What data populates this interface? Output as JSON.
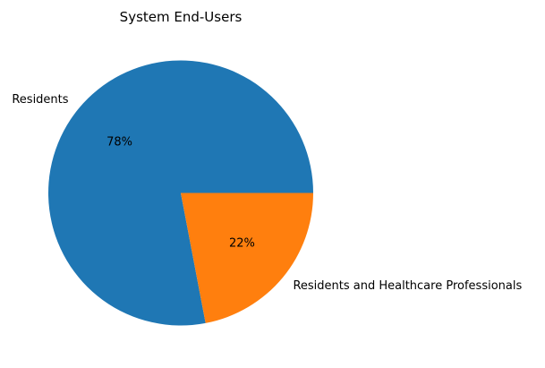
{
  "chart_data": {
    "type": "pie",
    "title": "System End-Users",
    "categories": [
      "Residents",
      "Residents and Healthcare Professionals"
    ],
    "values": [
      78,
      22
    ],
    "value_labels": [
      "78%",
      "22%"
    ],
    "colors": [
      "#1f77b4",
      "#ff7f0e"
    ],
    "start_angle": 0,
    "direction": "counterclockwise",
    "legend": "none"
  }
}
